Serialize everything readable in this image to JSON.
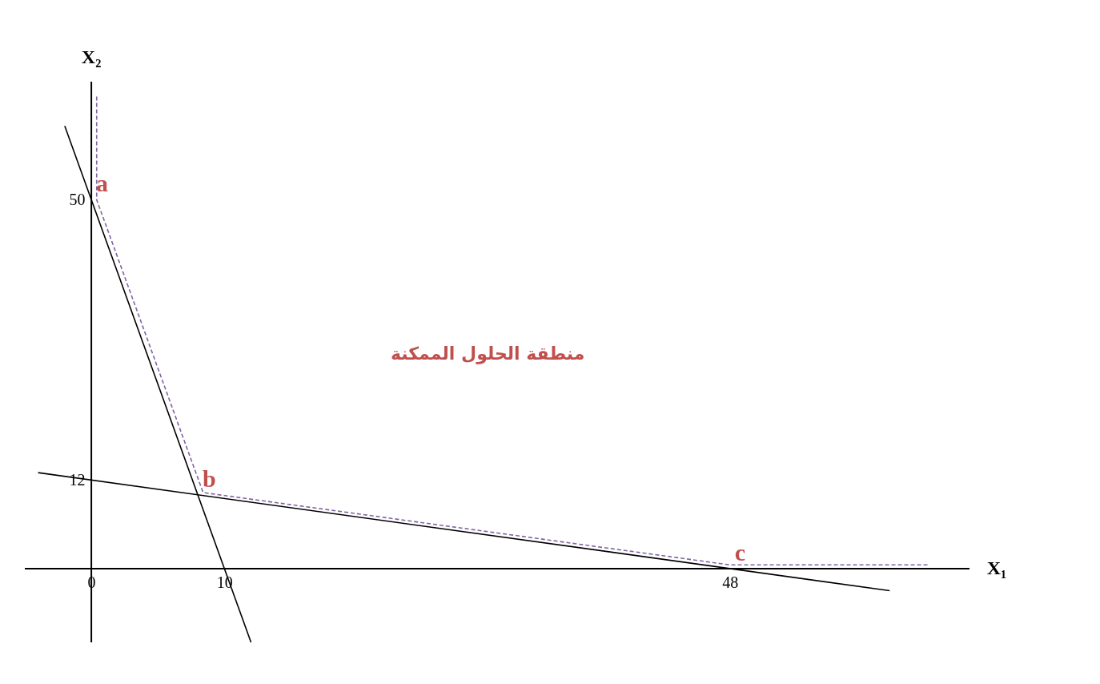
{
  "chart_data": {
    "type": "line",
    "xlabel": "X₁",
    "ylabel": "X₂",
    "xlim": [
      -5,
      66
    ],
    "ylim": [
      -10,
      66
    ],
    "xticks": [
      0,
      10,
      48
    ],
    "yticks": [
      12,
      50
    ],
    "grid": false,
    "marker": "none",
    "series": [
      {
        "color": "#000000",
        "line_style": "solid",
        "x": [
          -2,
          12
        ],
        "values": [
          60,
          -10
        ]
      },
      {
        "color": "#000000",
        "line_style": "solid",
        "x": [
          -4,
          60
        ],
        "values": [
          13,
          -3
        ]
      },
      {
        "color": "#8064a2",
        "line_style": "dashed",
        "x": [
          0.4,
          0.4,
          8.4,
          48,
          63
        ],
        "values": [
          64,
          50,
          10.3,
          0.5,
          0.5
        ]
      }
    ],
    "annotations": [
      {
        "text": "a",
        "x": 0,
        "y": 50
      },
      {
        "text": "b",
        "x": 8,
        "y": 10
      },
      {
        "text": "c",
        "x": 48,
        "y": 0
      },
      "منطقة الحلول الممكنة"
    ]
  }
}
